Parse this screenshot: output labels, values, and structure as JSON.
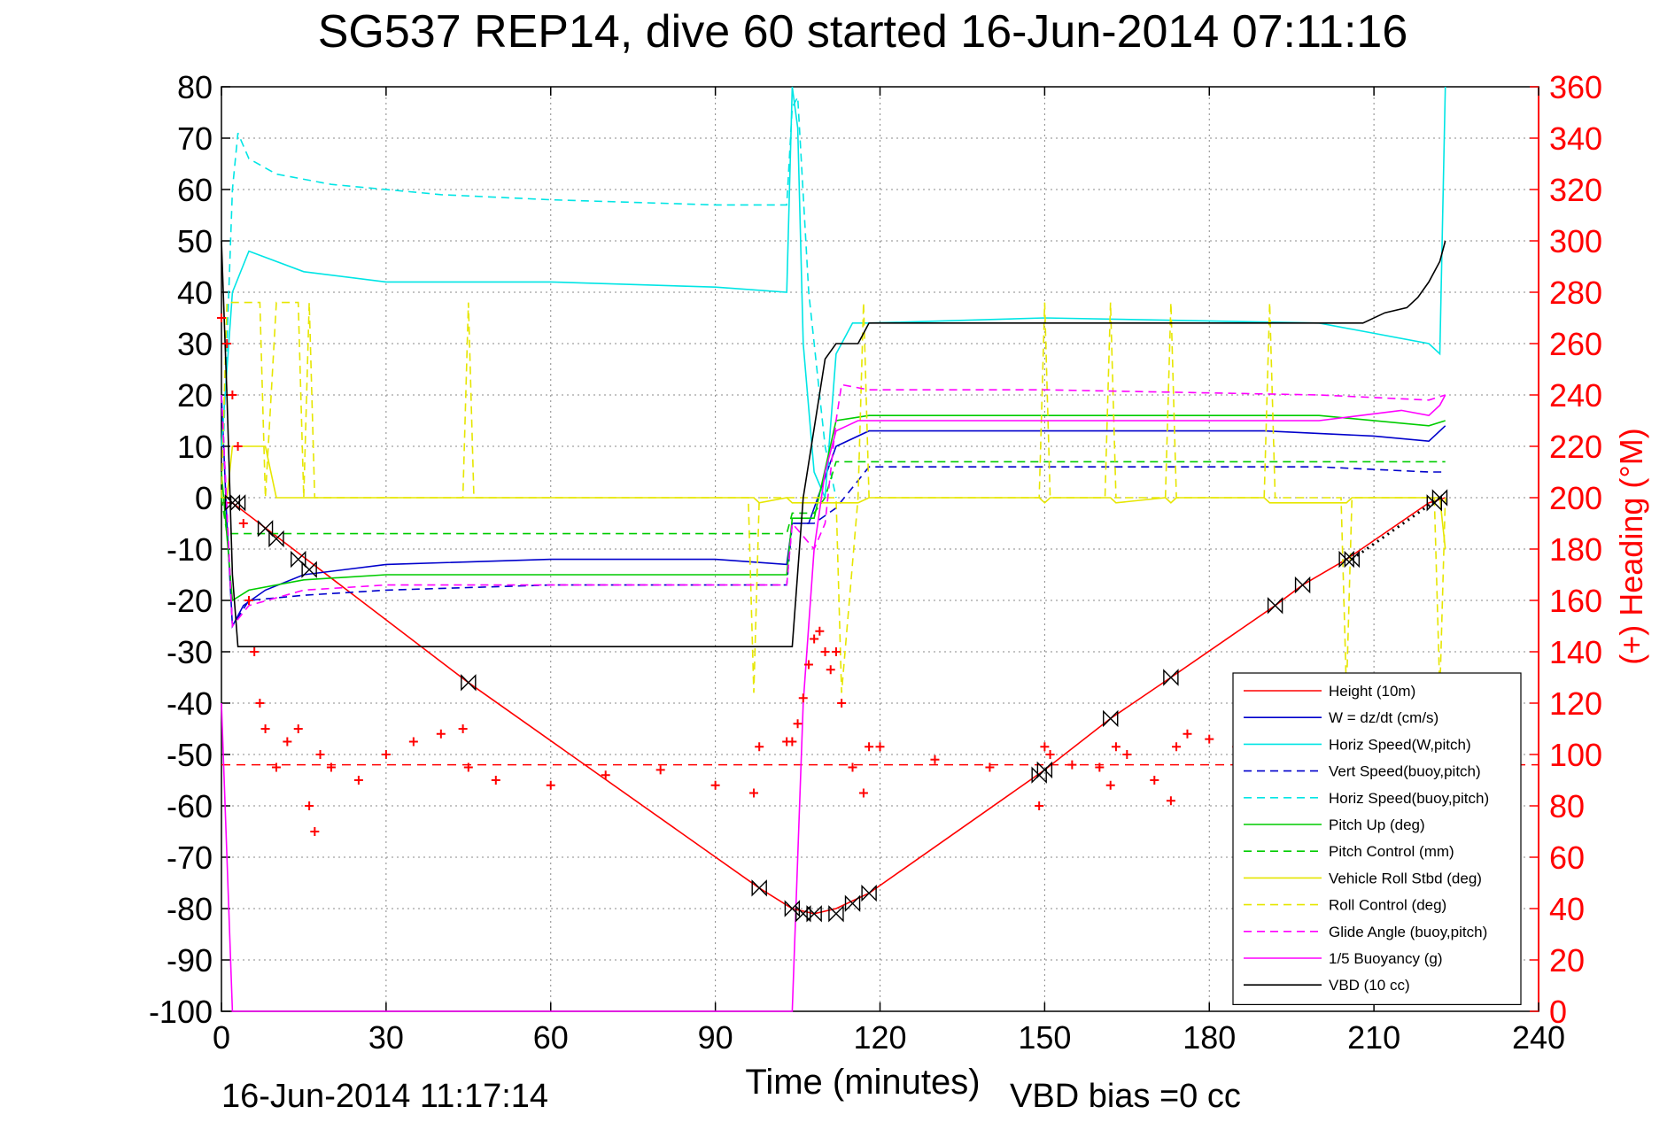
{
  "chart_data": {
    "type": "line",
    "title": "SG537 REP14, dive 60 started 16-Jun-2014 07:11:16",
    "xlabel": "Time (minutes)",
    "ylabel_right": "(+) Heading (°M)",
    "footer_left": "16-Jun-2014 11:17:14",
    "footer_right": "VBD bias =0 cc",
    "xlim": [
      0,
      240
    ],
    "ylim_left": [
      -100,
      80
    ],
    "ylim_right": [
      0,
      360
    ],
    "x_ticks": [
      0,
      30,
      60,
      90,
      120,
      150,
      180,
      210,
      240
    ],
    "y_ticks_left": [
      80,
      70,
      60,
      50,
      40,
      30,
      20,
      10,
      0,
      -10,
      -20,
      -30,
      -40,
      -50,
      -60,
      -70,
      -80,
      -90,
      -100
    ],
    "y_ticks_right": [
      360,
      340,
      320,
      300,
      280,
      260,
      240,
      220,
      200,
      180,
      160,
      140,
      120,
      100,
      80,
      60,
      40,
      20,
      0
    ],
    "grid": true,
    "legend_position": "lower-right",
    "colors": {
      "right_axis": "#ff0000"
    },
    "series": [
      {
        "name": "Height (10m)",
        "color": "#ff0000",
        "dash": "solid",
        "x": [
          0,
          2,
          45,
          98,
          104,
          108,
          112,
          118,
          150,
          162,
          173,
          192,
          197,
          205,
          220,
          223
        ],
        "y": [
          -1,
          -1,
          -36,
          -76,
          -80,
          -81,
          -80,
          -77,
          -53,
          -43,
          -35,
          -21,
          -17,
          -12,
          -1,
          0
        ]
      },
      {
        "name": "W = dz/dt (cm/s)",
        "color": "#0000cc",
        "dash": "solid",
        "x": [
          0,
          1,
          2,
          4,
          8,
          15,
          30,
          60,
          90,
          103,
          104,
          107,
          112,
          118,
          150,
          190,
          210,
          220,
          223
        ],
        "y": [
          20,
          -5,
          -25,
          -21,
          -18,
          -15,
          -13,
          -12,
          -12,
          -13,
          -5,
          -5,
          10,
          13,
          13,
          13,
          12,
          11,
          14
        ]
      },
      {
        "name": "Horiz Speed(W,pitch)",
        "color": "#00e5e5",
        "dash": "solid",
        "x": [
          0,
          1,
          2,
          5,
          15,
          30,
          60,
          90,
          103,
          104,
          105,
          106,
          108,
          110,
          112,
          115,
          118,
          150,
          200,
          210,
          220,
          222,
          223
        ],
        "y": [
          10,
          25,
          40,
          48,
          44,
          42,
          42,
          41,
          40,
          80,
          72,
          30,
          5,
          0,
          28,
          34,
          34,
          35,
          34,
          32,
          30,
          28,
          80
        ]
      },
      {
        "name": "Vert Speed(buoy,pitch)",
        "color": "#0000cc",
        "dash": "dashed",
        "x": [
          0,
          2,
          5,
          15,
          30,
          60,
          90,
          103,
          104,
          108,
          112,
          118,
          150,
          200,
          220,
          223
        ],
        "y": [
          20,
          -25,
          -20,
          -19,
          -18,
          -17,
          -17,
          -17,
          -5,
          -5,
          -2,
          6,
          6,
          6,
          5,
          5
        ]
      },
      {
        "name": "Horiz Speed(buoy,pitch)",
        "color": "#00e5e5",
        "dash": "dashed",
        "x": [
          0,
          2,
          3,
          5,
          10,
          20,
          40,
          60,
          90,
          103,
          104,
          105,
          107,
          110,
          112
        ],
        "y": [
          0,
          60,
          71,
          66,
          63,
          61,
          59,
          58,
          57,
          57,
          76,
          78,
          40,
          10,
          0
        ]
      },
      {
        "name": "Pitch Up (deg)",
        "color": "#00cc00",
        "dash": "solid",
        "x": [
          0,
          2,
          5,
          15,
          30,
          60,
          90,
          103,
          104,
          108,
          112,
          118,
          150,
          200,
          220,
          223
        ],
        "y": [
          5,
          -20,
          -18,
          -16,
          -15,
          -15,
          -15,
          -15,
          -4,
          -4,
          15,
          16,
          16,
          16,
          14,
          15
        ]
      },
      {
        "name": "Pitch Control (mm)",
        "color": "#00cc00",
        "dash": "dashed",
        "x": [
          0,
          1,
          2,
          103,
          104,
          108,
          110,
          112,
          223
        ],
        "y": [
          0,
          -7,
          -7,
          -7,
          -3,
          -3,
          0,
          7,
          7
        ]
      },
      {
        "name": "Vehicle Roll Stbd (deg)",
        "color": "#e6e600",
        "dash": "solid",
        "x": [
          0,
          1,
          2,
          4,
          8,
          10,
          15,
          17,
          20,
          30,
          44,
          45,
          50,
          60,
          90,
          97,
          98,
          103,
          104,
          110,
          112,
          116,
          118,
          122,
          149,
          150,
          151,
          162,
          163,
          172,
          173,
          174,
          190,
          191,
          205,
          206,
          222,
          223
        ],
        "y": [
          0,
          0,
          10,
          10,
          10,
          0,
          0,
          0,
          0,
          0,
          0,
          0,
          0,
          0,
          0,
          0,
          -1,
          0,
          -1,
          -1,
          -1,
          -1,
          0,
          0,
          0,
          -1,
          0,
          0,
          -1,
          0,
          -1,
          0,
          0,
          -1,
          -1,
          0,
          0,
          -10
        ]
      },
      {
        "name": "Roll Control (deg)",
        "color": "#e6e600",
        "dash": "dashed",
        "x": [
          0,
          1,
          2,
          7,
          8,
          10,
          14,
          15,
          16,
          17,
          18,
          44,
          45,
          46,
          96,
          97,
          98,
          103,
          104,
          112,
          113,
          116,
          117,
          118,
          119,
          149,
          150,
          151,
          161,
          162,
          163,
          172,
          173,
          174,
          190,
          191,
          192,
          204,
          205,
          206,
          221,
          222,
          223
        ],
        "y": [
          0,
          38,
          38,
          38,
          0,
          38,
          38,
          0,
          38,
          0,
          0,
          0,
          38,
          0,
          0,
          -38,
          0,
          0,
          0,
          0,
          -38,
          0,
          38,
          0,
          0,
          0,
          38,
          0,
          0,
          38,
          0,
          0,
          38,
          0,
          0,
          38,
          0,
          0,
          -38,
          0,
          0,
          -38,
          0
        ]
      },
      {
        "name": "Glide Angle (buoy,pitch)",
        "color": "#ff00ff",
        "dash": "dashed",
        "x": [
          0,
          2,
          5,
          15,
          30,
          60,
          90,
          103,
          104,
          108,
          110,
          112,
          113,
          118,
          150,
          200,
          220,
          223
        ],
        "y": [
          20,
          -25,
          -21,
          -18,
          -17,
          -17,
          -17,
          -17,
          -5,
          -10,
          -5,
          15,
          22,
          21,
          21,
          20,
          19,
          20
        ]
      },
      {
        "name": "1/5 Buoyancy (g)",
        "color": "#ff00ff",
        "dash": "solid",
        "x": [
          0,
          1,
          2,
          104,
          105,
          106,
          108,
          110,
          112,
          114,
          116,
          118,
          150,
          200,
          215,
          220,
          222,
          223
        ],
        "y": [
          -40,
          -70,
          -100,
          -100,
          -70,
          -40,
          -10,
          5,
          13,
          14,
          15,
          15,
          15,
          15,
          17,
          16,
          18,
          20
        ]
      },
      {
        "name": "VBD (10 cc)",
        "color": "#000000",
        "dash": "solid",
        "x": [
          0,
          1,
          2,
          3,
          5,
          20,
          60,
          103,
          104,
          106,
          110,
          112,
          114,
          116,
          118,
          120,
          150,
          200,
          208,
          212,
          216,
          218,
          220,
          222,
          223
        ],
        "y": [
          50,
          20,
          -15,
          -29,
          -29,
          -29,
          -29,
          -29,
          -29,
          0,
          27,
          30,
          30,
          30,
          34,
          34,
          34,
          34,
          34,
          36,
          37,
          39,
          42,
          46,
          50
        ]
      },
      {
        "name": "Heading",
        "color": "#ff0000",
        "dash": "markers",
        "axis": "right",
        "x": [
          0,
          1,
          2,
          3,
          4,
          5,
          6,
          7,
          8,
          10,
          12,
          14,
          16,
          17,
          18,
          20,
          25,
          30,
          35,
          40,
          44,
          45,
          50,
          60,
          70,
          80,
          90,
          97,
          98,
          103,
          104,
          105,
          106,
          107,
          108,
          109,
          110,
          111,
          112,
          113,
          115,
          117,
          118,
          120,
          130,
          140,
          149,
          150,
          151,
          155,
          160,
          162,
          163,
          165,
          170,
          173,
          174,
          176,
          180,
          185,
          190,
          195,
          200,
          205,
          210,
          215,
          220,
          223
        ],
        "y": [
          270,
          260,
          240,
          220,
          190,
          160,
          140,
          120,
          110,
          95,
          105,
          110,
          80,
          70,
          100,
          95,
          90,
          100,
          105,
          108,
          110,
          95,
          90,
          88,
          92,
          94,
          88,
          85,
          103,
          105,
          105,
          112,
          122,
          135,
          145,
          148,
          140,
          133,
          140,
          120,
          95,
          85,
          103,
          103,
          98,
          95,
          80,
          103,
          100,
          96,
          95,
          88,
          103,
          100,
          90,
          82,
          103,
          108,
          106,
          103,
          100,
          99,
          100,
          100,
          100,
          100,
          100,
          100
        ]
      }
    ],
    "reference_lines": [
      {
        "type": "hline",
        "axis": "left",
        "y": -52,
        "color": "#ff0000",
        "dash": "dashed"
      }
    ],
    "markers": [
      {
        "symbol": "bowtie",
        "color": "#000000",
        "x": [
          2,
          3,
          8,
          10,
          14,
          16,
          45,
          98,
          104,
          106,
          108,
          112,
          115,
          118,
          149,
          150,
          162,
          173,
          192,
          197,
          205,
          206,
          221,
          222
        ],
        "y": [
          -1,
          -1,
          -6,
          -8,
          -12,
          -14,
          -36,
          -76,
          -80,
          -81,
          -81,
          -81,
          -79,
          -77,
          -54,
          -53,
          -43,
          -35,
          -21,
          -17,
          -12,
          -12,
          -1,
          0
        ]
      }
    ],
    "dotted_segments": [
      {
        "color": "#000000",
        "x": [
          206,
          222
        ],
        "y": [
          -12,
          0
        ]
      }
    ]
  }
}
